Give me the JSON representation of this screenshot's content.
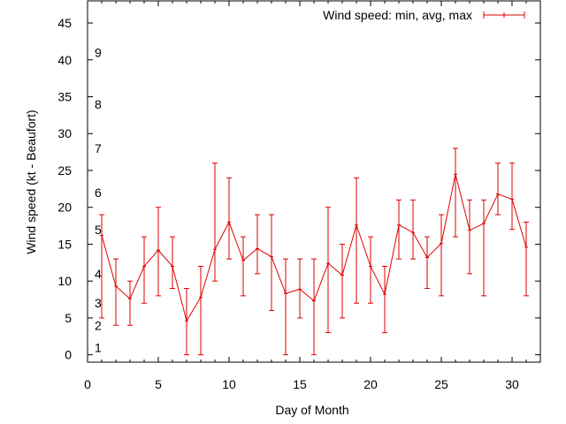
{
  "chart_data": {
    "type": "line",
    "xlabel": "Day of Month",
    "ylabel": "Wind speed (kt - Beaufort)",
    "xlim": [
      0,
      32
    ],
    "ylim": [
      -1,
      48
    ],
    "xticks": [
      0,
      5,
      10,
      15,
      20,
      25,
      30
    ],
    "yticks": [
      0,
      5,
      10,
      15,
      20,
      25,
      30,
      35,
      40,
      45
    ],
    "grid": false,
    "legend_position": "top-right",
    "beaufort_labels": [
      {
        "text": "1",
        "y": 1
      },
      {
        "text": "2",
        "y": 4
      },
      {
        "text": "3",
        "y": 7
      },
      {
        "text": "4",
        "y": 11
      },
      {
        "text": "5",
        "y": 17
      },
      {
        "text": "6",
        "y": 22
      },
      {
        "text": "7",
        "y": 28
      },
      {
        "text": "8",
        "y": 34
      },
      {
        "text": "9",
        "y": 41
      }
    ],
    "series": [
      {
        "name": "Wind speed: min, avg, max",
        "color": "#dd0000",
        "x": [
          1,
          2,
          3,
          4,
          5,
          6,
          7,
          8,
          9,
          10,
          11,
          12,
          13,
          14,
          15,
          16,
          17,
          18,
          19,
          20,
          21,
          22,
          23,
          24,
          25,
          26,
          27,
          28,
          29,
          30,
          31
        ],
        "avg": [
          16.2,
          9.3,
          7.6,
          12,
          14.2,
          12,
          4.6,
          7.8,
          14.3,
          18,
          12.8,
          14.4,
          13.3,
          8.3,
          8.9,
          7.3,
          12.4,
          10.8,
          17.6,
          12,
          8.2,
          17.6,
          16.6,
          13.2,
          15.1,
          24.5,
          16.9,
          17.8,
          21.8,
          21.1,
          14.6
        ],
        "min": [
          5,
          4,
          4,
          7,
          8,
          9,
          0,
          0,
          10,
          13,
          8,
          11,
          6,
          0,
          5,
          0,
          3,
          5,
          7,
          7,
          3,
          13,
          13,
          9,
          8,
          16,
          11,
          8,
          19,
          17,
          8
        ],
        "max": [
          19,
          13,
          10,
          16,
          20,
          16,
          9,
          12,
          26,
          24,
          16,
          19,
          19,
          13,
          13,
          13,
          20,
          15,
          24,
          16,
          12,
          21,
          21,
          16,
          19,
          28,
          21,
          21,
          26,
          26,
          18
        ]
      }
    ]
  }
}
